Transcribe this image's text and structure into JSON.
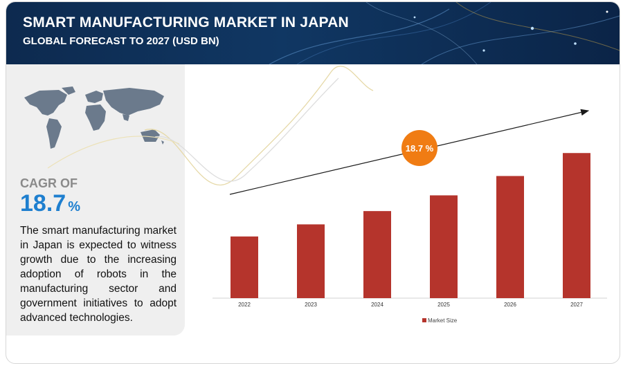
{
  "header": {
    "title": "SMART MANUFACTURING MARKET IN JAPAN",
    "subtitle": "GLOBAL FORECAST TO 2027 (USD BN)"
  },
  "sidebar": {
    "cagr_label": "CAGR OF",
    "cagr_value": "18.7",
    "cagr_unit": "%",
    "description": "The smart manufacturing market in Japan is expected to witness growth due to the increasing adoption of robots in the manufacturing sector and government initiatives to adopt advanced technologies."
  },
  "chart_data": {
    "type": "bar",
    "categories": [
      "2022",
      "2023",
      "2024",
      "2025",
      "2026",
      "2027"
    ],
    "series": [
      {
        "name": "Market Size",
        "values": [
          5.1,
          6.1,
          7.2,
          8.5,
          10.1,
          12.0
        ]
      }
    ],
    "ylim": [
      0,
      12.7
    ],
    "annotation": "18.7 %",
    "legend_position": "bottom-center",
    "colors": {
      "bar": "#b5342c",
      "badge": "#f07c13",
      "arrow": "#1a1a1a"
    },
    "grid": false
  }
}
